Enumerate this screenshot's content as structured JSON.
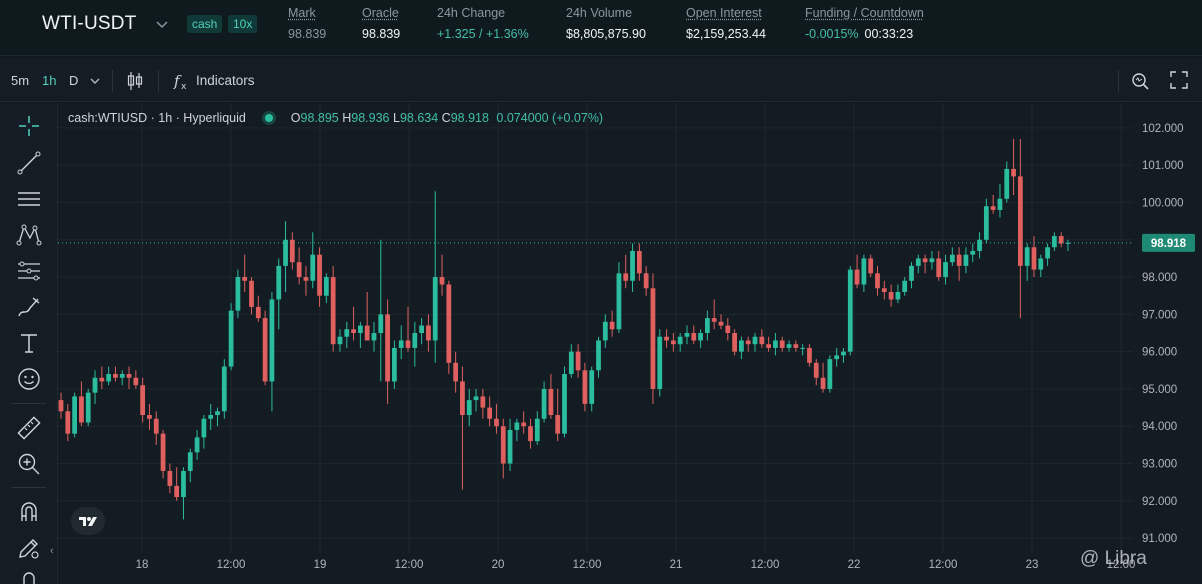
{
  "header": {
    "symbol": "WTI-USDT",
    "badges": {
      "type": "cash",
      "leverage": "10x"
    },
    "stats": [
      {
        "label": "Mark",
        "value": "98.839",
        "value_style": "muted",
        "underline": true
      },
      {
        "label": "Oracle",
        "value": "98.839",
        "value_style": "white",
        "underline": true
      },
      {
        "label": "24h Change",
        "value": "+1.325 / +1.36%",
        "value_style": "green",
        "underline": false
      },
      {
        "label": "24h Volume",
        "value": "$8,805,875.90",
        "value_style": "white",
        "underline": false
      },
      {
        "label": "Open Interest",
        "value": "$2,159,253.44",
        "value_style": "white",
        "underline": true
      },
      {
        "label": "Funding / Countdown",
        "value": "-0.0015%",
        "value2": "00:33:23",
        "value_style": "green",
        "underline": true
      }
    ]
  },
  "toolbar": {
    "timeframes": [
      "5m",
      "1h",
      "D"
    ],
    "active_timeframe": "1h",
    "indicators_label": "Indicators"
  },
  "legend": {
    "title": "cash:WTIUSD · 1h · Hyperliquid",
    "open_label": "O",
    "open": "98.895",
    "high_label": "H",
    "high": "98.936",
    "low_label": "L",
    "low": "98.634",
    "close_label": "C",
    "close": "98.918",
    "change": "0.074000 (+0.07%)"
  },
  "left_tools": [
    "crosshair-icon",
    "trend-line-icon",
    "horizontal-lines-icon",
    "pattern-icon",
    "fib-icon",
    "brush-icon",
    "text-icon",
    "emoji-icon",
    "ruler-icon",
    "zoom-icon",
    "magnet-icon",
    "lock-edit-icon"
  ],
  "watermark": "@ Libra",
  "colors": {
    "up": "#2bbd9f",
    "down": "#e0605f",
    "accent": "#4fd1bd",
    "background": "#131c22"
  },
  "chart_data": {
    "type": "candlestick",
    "symbol": "cash:WTIUSD",
    "interval": "1h",
    "y_ticks": [
      91,
      92,
      93,
      94,
      95,
      96,
      97,
      98,
      99,
      100,
      101,
      102
    ],
    "y_tick_labels": [
      "91.000",
      "92.000",
      "93.000",
      "94.000",
      "95.000",
      "96.000",
      "97.000",
      "98.000",
      "99.000",
      "100.000",
      "101.000",
      "102.000"
    ],
    "ylim": [
      90.6,
      102.4
    ],
    "x_ticks": [
      "18",
      "12:00",
      "19",
      "12:00",
      "20",
      "12:00",
      "21",
      "12:00",
      "22",
      "12:00",
      "23",
      "12:00"
    ],
    "last_price": 98.918,
    "last_price_label": "98.918",
    "ohlc": [
      [
        94.7,
        94.9,
        94.2,
        94.4
      ],
      [
        94.4,
        94.6,
        93.6,
        93.8
      ],
      [
        93.8,
        94.9,
        93.7,
        94.8
      ],
      [
        94.8,
        95.2,
        94.0,
        94.1
      ],
      [
        94.1,
        95.0,
        94.0,
        94.9
      ],
      [
        94.9,
        95.5,
        94.6,
        95.3
      ],
      [
        95.3,
        95.6,
        95.0,
        95.2
      ],
      [
        95.2,
        95.6,
        95.1,
        95.4
      ],
      [
        95.4,
        95.6,
        95.2,
        95.3
      ],
      [
        95.3,
        95.5,
        95.1,
        95.4
      ],
      [
        95.4,
        95.6,
        95.0,
        95.3
      ],
      [
        95.3,
        95.5,
        95.0,
        95.1
      ],
      [
        95.1,
        95.3,
        94.1,
        94.3
      ],
      [
        94.3,
        94.6,
        93.9,
        94.2
      ],
      [
        94.2,
        94.4,
        93.5,
        93.8
      ],
      [
        93.8,
        93.9,
        92.6,
        92.8
      ],
      [
        92.8,
        93.0,
        92.2,
        92.4
      ],
      [
        92.4,
        92.9,
        92.0,
        92.1
      ],
      [
        92.1,
        92.9,
        91.5,
        92.8
      ],
      [
        92.8,
        93.4,
        92.5,
        93.3
      ],
      [
        93.3,
        93.9,
        93.1,
        93.7
      ],
      [
        93.7,
        94.3,
        93.4,
        94.2
      ],
      [
        94.2,
        94.6,
        93.9,
        94.3
      ],
      [
        94.3,
        94.5,
        94.0,
        94.4
      ],
      [
        94.4,
        95.8,
        94.2,
        95.6
      ],
      [
        95.6,
        97.3,
        95.5,
        97.1
      ],
      [
        97.1,
        98.2,
        96.9,
        98.0
      ],
      [
        98.0,
        98.6,
        97.6,
        97.9
      ],
      [
        97.9,
        98.0,
        97.0,
        97.2
      ],
      [
        97.2,
        97.5,
        96.8,
        96.9
      ],
      [
        96.9,
        97.1,
        95.1,
        95.2
      ],
      [
        95.2,
        97.6,
        94.4,
        97.4
      ],
      [
        97.4,
        98.5,
        96.6,
        98.3
      ],
      [
        98.3,
        99.5,
        97.6,
        99.0
      ],
      [
        99.0,
        99.2,
        98.2,
        98.4
      ],
      [
        98.4,
        98.8,
        97.8,
        98.0
      ],
      [
        98.0,
        98.3,
        97.5,
        97.9
      ],
      [
        97.9,
        99.2,
        97.7,
        98.6
      ],
      [
        98.6,
        98.8,
        97.2,
        97.5
      ],
      [
        97.5,
        98.1,
        97.3,
        98.0
      ],
      [
        98.0,
        98.3,
        96.0,
        96.2
      ],
      [
        96.2,
        96.6,
        96.0,
        96.4
      ],
      [
        96.4,
        96.8,
        96.1,
        96.6
      ],
      [
        96.6,
        97.2,
        96.3,
        96.5
      ],
      [
        96.5,
        96.8,
        96.1,
        96.7
      ],
      [
        96.7,
        97.6,
        96.4,
        96.3
      ],
      [
        96.3,
        96.8,
        96.0,
        96.5
      ],
      [
        96.5,
        99.0,
        95.2,
        97.0
      ],
      [
        97.0,
        97.4,
        94.6,
        95.2
      ],
      [
        95.2,
        96.3,
        95.0,
        96.1
      ],
      [
        96.1,
        96.7,
        95.8,
        96.3
      ],
      [
        96.3,
        97.2,
        96.0,
        96.1
      ],
      [
        96.1,
        96.8,
        95.6,
        96.5
      ],
      [
        96.5,
        96.9,
        96.2,
        96.7
      ],
      [
        96.7,
        97.0,
        96.0,
        96.3
      ],
      [
        96.3,
        100.3,
        95.7,
        98.0
      ],
      [
        98.0,
        98.6,
        97.5,
        97.8
      ],
      [
        97.8,
        97.9,
        95.4,
        95.7
      ],
      [
        95.7,
        96.0,
        94.9,
        95.2
      ],
      [
        95.2,
        95.6,
        92.3,
        94.3
      ],
      [
        94.3,
        95.0,
        94.0,
        94.7
      ],
      [
        94.7,
        95.0,
        94.4,
        94.8
      ],
      [
        94.8,
        95.0,
        94.2,
        94.5
      ],
      [
        94.5,
        94.8,
        94.0,
        94.2
      ],
      [
        94.2,
        94.6,
        93.8,
        94.0
      ],
      [
        94.0,
        94.2,
        92.6,
        93.0
      ],
      [
        93.0,
        94.2,
        92.8,
        93.9
      ],
      [
        93.9,
        94.2,
        93.6,
        94.1
      ],
      [
        94.1,
        94.4,
        93.8,
        94.0
      ],
      [
        94.0,
        94.2,
        93.4,
        93.6
      ],
      [
        93.6,
        94.4,
        93.5,
        94.2
      ],
      [
        94.2,
        95.2,
        94.1,
        95.0
      ],
      [
        95.0,
        95.4,
        94.2,
        94.3
      ],
      [
        94.3,
        95.0,
        93.6,
        93.8
      ],
      [
        93.8,
        95.6,
        93.7,
        95.4
      ],
      [
        95.4,
        96.2,
        95.3,
        96.0
      ],
      [
        96.0,
        96.2,
        95.3,
        95.5
      ],
      [
        95.5,
        95.7,
        94.4,
        94.6
      ],
      [
        94.6,
        95.6,
        94.4,
        95.5
      ],
      [
        95.5,
        96.4,
        95.3,
        96.3
      ],
      [
        96.3,
        97.0,
        96.1,
        96.8
      ],
      [
        96.8,
        97.1,
        96.4,
        96.6
      ],
      [
        96.6,
        98.4,
        96.5,
        98.1
      ],
      [
        98.1,
        98.6,
        97.7,
        97.9
      ],
      [
        97.9,
        98.9,
        97.6,
        98.7
      ],
      [
        98.7,
        98.9,
        97.9,
        98.1
      ],
      [
        98.1,
        98.3,
        97.5,
        97.7
      ],
      [
        97.7,
        98.1,
        94.6,
        95.0
      ],
      [
        95.0,
        96.6,
        94.8,
        96.4
      ],
      [
        96.4,
        96.6,
        96.1,
        96.3
      ],
      [
        96.3,
        96.5,
        96.0,
        96.2
      ],
      [
        96.2,
        96.5,
        96.0,
        96.4
      ],
      [
        96.4,
        96.7,
        96.2,
        96.5
      ],
      [
        96.5,
        96.7,
        96.2,
        96.3
      ],
      [
        96.3,
        96.6,
        96.1,
        96.5
      ],
      [
        96.5,
        97.1,
        96.3,
        96.9
      ],
      [
        96.9,
        97.4,
        96.6,
        96.8
      ],
      [
        96.8,
        97.0,
        96.6,
        96.7
      ],
      [
        96.7,
        96.9,
        96.3,
        96.5
      ],
      [
        96.5,
        96.6,
        95.9,
        96.0
      ],
      [
        96.0,
        96.4,
        95.8,
        96.3
      ],
      [
        96.3,
        96.4,
        96.0,
        96.2
      ],
      [
        96.2,
        96.5,
        96.0,
        96.4
      ],
      [
        96.4,
        96.6,
        96.1,
        96.2
      ],
      [
        96.2,
        96.4,
        96.0,
        96.1
      ],
      [
        96.1,
        96.5,
        95.9,
        96.3
      ],
      [
        96.3,
        96.4,
        96.0,
        96.1
      ],
      [
        96.1,
        96.3,
        96.0,
        96.2
      ],
      [
        96.2,
        96.3,
        96.0,
        96.1
      ],
      [
        96.1,
        96.2,
        95.9,
        96.1
      ],
      [
        96.1,
        96.2,
        95.6,
        95.7
      ],
      [
        95.7,
        95.8,
        95.1,
        95.3
      ],
      [
        95.3,
        95.7,
        94.9,
        95.0
      ],
      [
        95.0,
        95.9,
        94.9,
        95.8
      ],
      [
        95.8,
        96.1,
        95.6,
        95.9
      ],
      [
        95.9,
        96.1,
        95.7,
        96.0
      ],
      [
        96.0,
        98.3,
        95.9,
        98.2
      ],
      [
        98.2,
        98.6,
        97.7,
        97.8
      ],
      [
        97.8,
        98.6,
        97.6,
        98.5
      ],
      [
        98.5,
        98.6,
        98.0,
        98.1
      ],
      [
        98.1,
        98.3,
        97.5,
        97.7
      ],
      [
        97.7,
        97.9,
        97.4,
        97.6
      ],
      [
        97.6,
        97.8,
        97.2,
        97.4
      ],
      [
        97.4,
        97.8,
        97.3,
        97.6
      ],
      [
        97.6,
        98.0,
        97.5,
        97.9
      ],
      [
        97.9,
        98.4,
        97.7,
        98.3
      ],
      [
        98.3,
        98.6,
        98.1,
        98.5
      ],
      [
        98.5,
        98.6,
        98.1,
        98.4
      ],
      [
        98.4,
        98.7,
        98.2,
        98.5
      ],
      [
        98.5,
        98.7,
        97.9,
        98.0
      ],
      [
        98.0,
        98.6,
        97.8,
        98.4
      ],
      [
        98.4,
        98.8,
        98.3,
        98.6
      ],
      [
        98.6,
        98.8,
        97.9,
        98.3
      ],
      [
        98.3,
        98.8,
        98.1,
        98.6
      ],
      [
        98.6,
        98.9,
        98.4,
        98.7
      ],
      [
        98.7,
        99.2,
        98.5,
        99.0
      ],
      [
        99.0,
        100.1,
        98.9,
        99.9
      ],
      [
        99.9,
        100.2,
        99.7,
        99.8
      ],
      [
        99.8,
        100.5,
        99.6,
        100.1
      ],
      [
        100.1,
        101.1,
        100.0,
        100.9
      ],
      [
        100.9,
        101.7,
        100.2,
        100.7
      ],
      [
        100.7,
        101.7,
        96.9,
        98.3
      ],
      [
        98.3,
        98.9,
        97.9,
        98.8
      ],
      [
        98.8,
        99.1,
        98.0,
        98.2
      ],
      [
        98.2,
        98.6,
        98.0,
        98.5
      ],
      [
        98.5,
        98.9,
        98.3,
        98.8
      ],
      [
        98.8,
        99.2,
        98.7,
        99.1
      ],
      [
        99.1,
        99.2,
        98.8,
        98.9
      ],
      [
        98.9,
        99.0,
        98.7,
        98.918
      ]
    ]
  }
}
